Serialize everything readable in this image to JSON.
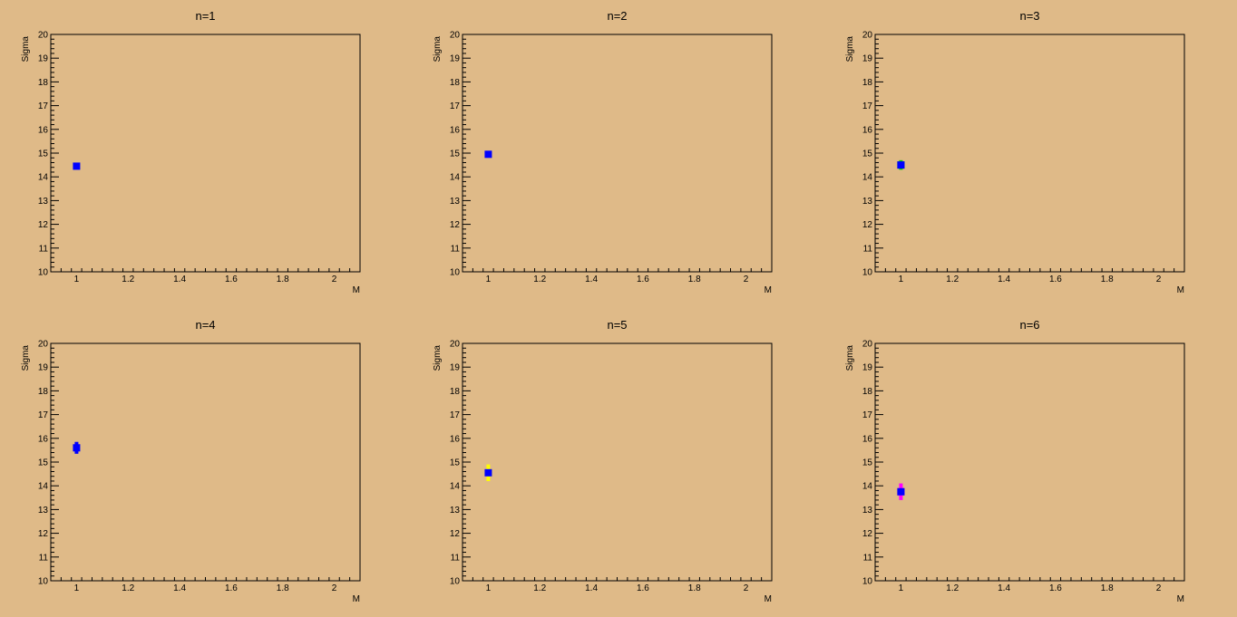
{
  "chart_data": [
    {
      "type": "scatter",
      "title": "n=1",
      "xlabel": "M",
      "ylabel": "Sigma",
      "xlim": [
        0.9,
        2.1
      ],
      "ylim": [
        10,
        20
      ],
      "xticks": [
        "1",
        "1.2",
        "1.4",
        "1.6",
        "1.8",
        "2"
      ],
      "yticks": [
        "10",
        "11",
        "12",
        "13",
        "14",
        "15",
        "16",
        "17",
        "18",
        "19",
        "20"
      ],
      "series": [
        {
          "color": "#0000ff",
          "points": [
            {
              "x": 1.0,
              "y": 14.45,
              "err": 0.05
            }
          ]
        }
      ]
    },
    {
      "type": "scatter",
      "title": "n=2",
      "xlabel": "M",
      "ylabel": "Sigma",
      "xlim": [
        0.9,
        2.1
      ],
      "ylim": [
        10,
        20
      ],
      "xticks": [
        "1",
        "1.2",
        "1.4",
        "1.6",
        "1.8",
        "2"
      ],
      "yticks": [
        "10",
        "11",
        "12",
        "13",
        "14",
        "15",
        "16",
        "17",
        "18",
        "19",
        "20"
      ],
      "series": [
        {
          "color": "#0000ff",
          "points": [
            {
              "x": 1.0,
              "y": 14.95,
              "err": 0.05
            }
          ]
        }
      ]
    },
    {
      "type": "scatter",
      "title": "n=3",
      "xlabel": "M",
      "ylabel": "Sigma",
      "xlim": [
        0.9,
        2.1
      ],
      "ylim": [
        10,
        20
      ],
      "xticks": [
        "1",
        "1.2",
        "1.4",
        "1.6",
        "1.8",
        "2"
      ],
      "yticks": [
        "10",
        "11",
        "12",
        "13",
        "14",
        "15",
        "16",
        "17",
        "18",
        "19",
        "20"
      ],
      "series": [
        {
          "color": "#00cc00",
          "points": [
            {
              "x": 1.0,
              "y": 14.5,
              "err": 0.2
            }
          ]
        },
        {
          "color": "#0000ff",
          "points": [
            {
              "x": 1.0,
              "y": 14.5,
              "err": 0.05
            }
          ]
        }
      ]
    },
    {
      "type": "scatter",
      "title": "n=4",
      "xlabel": "M",
      "ylabel": "Sigma",
      "xlim": [
        0.9,
        2.1
      ],
      "ylim": [
        10,
        20
      ],
      "xticks": [
        "1",
        "1.2",
        "1.4",
        "1.6",
        "1.8",
        "2"
      ],
      "yticks": [
        "10",
        "11",
        "12",
        "13",
        "14",
        "15",
        "16",
        "17",
        "18",
        "19",
        "20"
      ],
      "series": [
        {
          "color": "#0000ff",
          "points": [
            {
              "x": 1.0,
              "y": 15.6,
              "err": 0.25
            }
          ]
        }
      ]
    },
    {
      "type": "scatter",
      "title": "n=5",
      "xlabel": "M",
      "ylabel": "Sigma",
      "xlim": [
        0.9,
        2.1
      ],
      "ylim": [
        10,
        20
      ],
      "xticks": [
        "1",
        "1.2",
        "1.4",
        "1.6",
        "1.8",
        "2"
      ],
      "yticks": [
        "10",
        "11",
        "12",
        "13",
        "14",
        "15",
        "16",
        "17",
        "18",
        "19",
        "20"
      ],
      "series": [
        {
          "color": "#ffff00",
          "points": [
            {
              "x": 1.0,
              "y": 14.55,
              "err": 0.35
            }
          ]
        },
        {
          "color": "#0000ff",
          "points": [
            {
              "x": 1.0,
              "y": 14.55,
              "err": 0.05
            }
          ]
        }
      ]
    },
    {
      "type": "scatter",
      "title": "n=6",
      "xlabel": "M",
      "ylabel": "Sigma",
      "xlim": [
        0.9,
        2.1
      ],
      "ylim": [
        10,
        20
      ],
      "xticks": [
        "1",
        "1.2",
        "1.4",
        "1.6",
        "1.8",
        "2"
      ],
      "yticks": [
        "10",
        "11",
        "12",
        "13",
        "14",
        "15",
        "16",
        "17",
        "18",
        "19",
        "20"
      ],
      "series": [
        {
          "color": "#ff00ff",
          "points": [
            {
              "x": 1.0,
              "y": 13.75,
              "err": 0.35
            }
          ]
        },
        {
          "color": "#0000ff",
          "points": [
            {
              "x": 1.0,
              "y": 13.75,
              "err": 0.05
            }
          ]
        }
      ]
    }
  ]
}
